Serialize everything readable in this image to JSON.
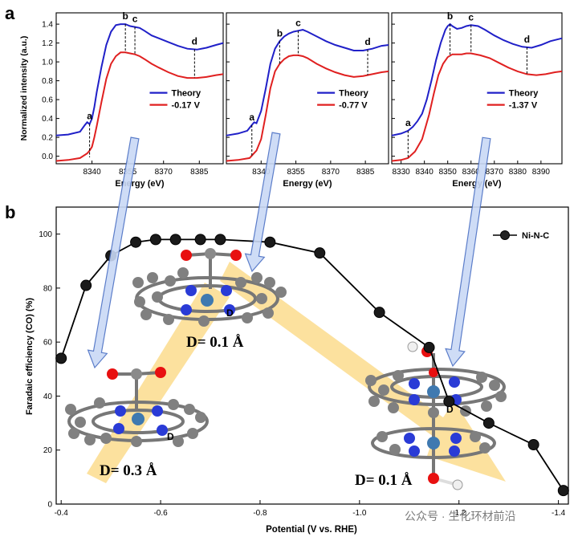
{
  "panel_labels": [
    "a",
    "b"
  ],
  "watermark": "公众号 · 生化环材前沿",
  "chart_data": [
    {
      "type": "line",
      "panel": "a",
      "xlabel": "Energy (eV)",
      "ylabel": "Normalized intensity (a.u.)",
      "xlim": [
        8325,
        8395
      ],
      "ylim": [
        -0.08,
        1.52
      ],
      "xticks": [
        8340,
        8355,
        8370,
        8385
      ],
      "yticks": [
        0.0,
        0.2,
        0.4,
        0.6,
        0.8,
        1.0,
        1.2,
        1.4
      ],
      "series": [
        {
          "name": "Theory",
          "color": "#2020c8",
          "x": [
            8325,
            8330,
            8335,
            8337,
            8338,
            8339,
            8340,
            8341,
            8342,
            8344,
            8346,
            8348,
            8350,
            8352,
            8354,
            8356,
            8358,
            8360,
            8362,
            8365,
            8368,
            8372,
            8376,
            8380,
            8384,
            8388,
            8392,
            8395
          ],
          "y": [
            0.22,
            0.23,
            0.26,
            0.33,
            0.36,
            0.34,
            0.4,
            0.52,
            0.68,
            0.95,
            1.18,
            1.32,
            1.39,
            1.4,
            1.4,
            1.38,
            1.37,
            1.36,
            1.33,
            1.28,
            1.25,
            1.21,
            1.17,
            1.14,
            1.13,
            1.15,
            1.18,
            1.2
          ]
        },
        {
          "name": "-0.17 V",
          "color": "#e02020",
          "x": [
            8325,
            8330,
            8335,
            8338,
            8339,
            8340,
            8341,
            8342,
            8344,
            8346,
            8348,
            8350,
            8352,
            8354,
            8356,
            8358,
            8360,
            8362,
            8365,
            8368,
            8372,
            8376,
            8380,
            8384,
            8388,
            8392,
            8395
          ],
          "y": [
            -0.05,
            -0.04,
            -0.02,
            0.03,
            0.06,
            0.1,
            0.2,
            0.32,
            0.58,
            0.82,
            0.98,
            1.06,
            1.1,
            1.1,
            1.09,
            1.08,
            1.06,
            1.03,
            0.98,
            0.94,
            0.89,
            0.85,
            0.83,
            0.83,
            0.84,
            0.86,
            0.87
          ]
        }
      ],
      "annotations": [
        {
          "label": "a",
          "x": 8339
        },
        {
          "label": "b",
          "x": 8354
        },
        {
          "label": "c",
          "x": 8358
        },
        {
          "label": "d",
          "x": 8383
        }
      ],
      "legend_position": "center-right"
    },
    {
      "type": "line",
      "panel": "a",
      "xlabel": "Energy (eV)",
      "xlim": [
        8325,
        8395
      ],
      "ylim": [
        -0.08,
        1.52
      ],
      "xticks": [
        8340,
        8355,
        8370,
        8385
      ],
      "series": [
        {
          "name": "Theory",
          "color": "#2020c8",
          "x": [
            8325,
            8330,
            8334,
            8336,
            8337,
            8338,
            8340,
            8342,
            8344,
            8346,
            8348,
            8350,
            8352,
            8354,
            8356,
            8358,
            8360,
            8364,
            8368,
            8372,
            8376,
            8380,
            8384,
            8388,
            8392,
            8395
          ],
          "y": [
            0.22,
            0.24,
            0.27,
            0.33,
            0.36,
            0.35,
            0.48,
            0.72,
            0.98,
            1.14,
            1.22,
            1.27,
            1.3,
            1.32,
            1.33,
            1.34,
            1.32,
            1.27,
            1.22,
            1.18,
            1.15,
            1.12,
            1.12,
            1.14,
            1.17,
            1.18
          ]
        },
        {
          "name": "-0.77 V",
          "color": "#e02020",
          "x": [
            8325,
            8330,
            8335,
            8338,
            8340,
            8342,
            8344,
            8346,
            8348,
            8350,
            8352,
            8354,
            8356,
            8358,
            8360,
            8364,
            8368,
            8372,
            8376,
            8380,
            8384,
            8388,
            8392,
            8395
          ],
          "y": [
            -0.05,
            -0.04,
            -0.02,
            0.06,
            0.18,
            0.44,
            0.72,
            0.9,
            0.98,
            1.03,
            1.06,
            1.07,
            1.07,
            1.06,
            1.04,
            0.98,
            0.93,
            0.89,
            0.86,
            0.84,
            0.85,
            0.87,
            0.89,
            0.9
          ]
        }
      ],
      "annotations": [
        {
          "label": "a",
          "x": 8336
        },
        {
          "label": "b",
          "x": 8348
        },
        {
          "label": "c",
          "x": 8356
        },
        {
          "label": "d",
          "x": 8386
        }
      ],
      "legend_position": "center-right"
    },
    {
      "type": "line",
      "panel": "a",
      "xlabel": "Energy (eV)",
      "xlim": [
        8326,
        8399
      ],
      "ylim": [
        -0.08,
        1.52
      ],
      "xticks": [
        8330,
        8340,
        8350,
        8360,
        8370,
        8380,
        8390
      ],
      "series": [
        {
          "name": "Theory",
          "color": "#2020c8",
          "x": [
            8326,
            8330,
            8333,
            8335,
            8337,
            8339,
            8341,
            8343,
            8345,
            8347,
            8349,
            8350,
            8351,
            8352,
            8354,
            8356,
            8358,
            8360,
            8363,
            8366,
            8370,
            8374,
            8378,
            8382,
            8386,
            8390,
            8394,
            8399
          ],
          "y": [
            0.22,
            0.24,
            0.27,
            0.31,
            0.37,
            0.45,
            0.6,
            0.8,
            1.02,
            1.2,
            1.34,
            1.38,
            1.4,
            1.38,
            1.35,
            1.36,
            1.38,
            1.39,
            1.38,
            1.34,
            1.28,
            1.23,
            1.19,
            1.16,
            1.15,
            1.18,
            1.22,
            1.25
          ]
        },
        {
          "name": "-1.37 V",
          "color": "#e02020",
          "x": [
            8326,
            8330,
            8333,
            8336,
            8339,
            8342,
            8344,
            8346,
            8348,
            8350,
            8352,
            8354,
            8356,
            8358,
            8360,
            8364,
            8368,
            8372,
            8376,
            8380,
            8384,
            8388,
            8392,
            8396,
            8399
          ],
          "y": [
            -0.05,
            -0.04,
            -0.02,
            0.05,
            0.18,
            0.44,
            0.66,
            0.86,
            0.98,
            1.05,
            1.08,
            1.08,
            1.08,
            1.09,
            1.09,
            1.07,
            1.04,
            0.99,
            0.94,
            0.9,
            0.87,
            0.86,
            0.87,
            0.89,
            0.9
          ]
        }
      ],
      "annotations": [
        {
          "label": "a",
          "x": 8333
        },
        {
          "label": "b",
          "x": 8351
        },
        {
          "label": "c",
          "x": 8360
        },
        {
          "label": "d",
          "x": 8384
        }
      ],
      "legend_position": "center-right"
    },
    {
      "type": "scatter",
      "panel": "b",
      "xlabel": "Potential (V vs. RHE)",
      "ylabel": "Faradaic efficiency (CO) (%)",
      "xlim": [
        -0.39,
        -1.42
      ],
      "ylim": [
        0,
        110
      ],
      "xticks": [
        -0.4,
        -0.6,
        -0.8,
        -1.0,
        -1.2,
        -1.4
      ],
      "yticks": [
        0,
        20,
        40,
        60,
        80,
        100
      ],
      "series": [
        {
          "name": "Ni-N-C",
          "color": "#000000",
          "x": [
            -0.4,
            -0.45,
            -0.5,
            -0.55,
            -0.59,
            -0.63,
            -0.68,
            -0.72,
            -0.82,
            -0.92,
            -1.04,
            -1.14,
            -1.18,
            -1.26,
            -1.35,
            -1.41
          ],
          "y": [
            54,
            81,
            92,
            97,
            98,
            98,
            98,
            98,
            97,
            93,
            71,
            58,
            38,
            30,
            22,
            5
          ]
        }
      ],
      "annotations": [
        "D= 0.1 Å",
        "D= 0.3 Å",
        "D= 0.1 Å"
      ],
      "legend_position": "top-right"
    }
  ]
}
